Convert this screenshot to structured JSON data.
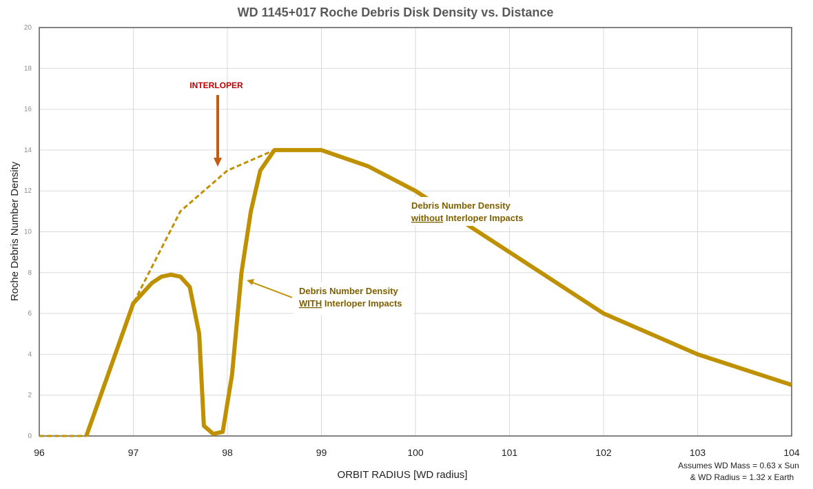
{
  "chart_data": {
    "type": "line",
    "title": "WD 1145+017 Roche Debris Disk Density vs. Distance",
    "xlabel": "ORBIT RADIUS [WD radius]",
    "ylabel": "Roche Debris Number Density",
    "xlim": [
      96,
      104
    ],
    "ylim": [
      0,
      20
    ],
    "x_ticks": [
      "96",
      "97",
      "98",
      "99",
      "100",
      "101",
      "102",
      "103",
      "104"
    ],
    "y_ticks": [
      "0",
      "2",
      "4",
      "6",
      "8",
      "10",
      "12",
      "14",
      "16",
      "18",
      "20"
    ],
    "grid": true,
    "series": [
      {
        "name": "Debris Number Density WITH Interloper Impacts",
        "style": "solid-thick",
        "color": "#bf9000",
        "points": [
          [
            96.5,
            0
          ],
          [
            97.0,
            6.5
          ],
          [
            97.2,
            7.5
          ],
          [
            97.3,
            7.8
          ],
          [
            97.4,
            7.9
          ],
          [
            97.5,
            7.8
          ],
          [
            97.6,
            7.3
          ],
          [
            97.7,
            5.0
          ],
          [
            97.75,
            0.5
          ],
          [
            97.85,
            0.1
          ],
          [
            97.95,
            0.2
          ],
          [
            98.05,
            3.0
          ],
          [
            98.15,
            8.0
          ],
          [
            98.25,
            11.0
          ],
          [
            98.35,
            13.0
          ],
          [
            98.5,
            14.0
          ],
          [
            99.0,
            14.0
          ],
          [
            99.5,
            13.2
          ],
          [
            100.0,
            12.0
          ],
          [
            101.0,
            9.0
          ],
          [
            102.0,
            6.0
          ],
          [
            103.0,
            4.0
          ],
          [
            104.0,
            2.5
          ]
        ]
      },
      {
        "name": "Debris Number Density without Interloper Impacts",
        "style": "dashed",
        "color": "#bf9000",
        "points": [
          [
            96.0,
            0
          ],
          [
            96.5,
            0
          ],
          [
            97.0,
            6.5
          ],
          [
            97.5,
            11.0
          ],
          [
            98.0,
            13.0
          ],
          [
            98.5,
            14.0
          ]
        ]
      }
    ],
    "annotations": {
      "interloper": "INTERLOPER",
      "without_line1": "Debris Number Density",
      "without_underlined": "without",
      "without_rest": " Interloper Impacts",
      "with_line1": "Debris Number Density",
      "with_underlined": "WITH",
      "with_rest": " Interloper Impacts",
      "note_line1": "Assumes WD Mass = 0.63 x Sun",
      "note_line2": "& WD Radius  = 1.32 x Earth"
    },
    "colors": {
      "series": "#bf9000",
      "arrow_interloper": "#c55a11",
      "text_annotation": "#7f6000",
      "text_interloper": "#c00000"
    }
  }
}
